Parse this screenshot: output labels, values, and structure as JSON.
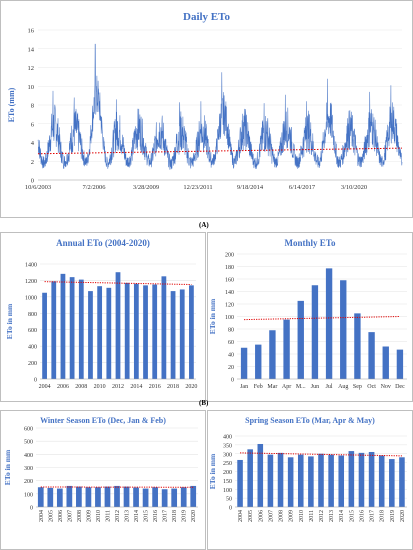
{
  "labels": {
    "a": "(A)",
    "b": "(B)"
  },
  "chart_data": [
    {
      "id": "daily",
      "type": "line",
      "title": "Daily ETo",
      "ylabel": "ETo  (mm)",
      "xlabel": "",
      "ylim": [
        0,
        16
      ],
      "yticks": [
        0,
        2,
        4,
        6,
        8,
        10,
        12,
        14,
        16
      ],
      "xticks": [
        "10/6/2003",
        "7/2/2006",
        "3/28/2009",
        "12/23/2011",
        "9/18/2014",
        "6/14/2017",
        "3/10/2020"
      ],
      "x_start": 2003.76,
      "x_end": 2021.0,
      "series": [
        {
          "years": [
            2004,
            2005,
            2006,
            2007,
            2008,
            2009,
            2010,
            2011,
            2012,
            2013,
            2014,
            2015,
            2016,
            2017,
            2018,
            2019,
            2020
          ],
          "summer_peaks": [
            9.5,
            8.8,
            14.5,
            8.6,
            8.9,
            8.5,
            8.3,
            8.4,
            11.5,
            8.8,
            8.2,
            9.1,
            8.4,
            10.8,
            8.6,
            9.4,
            10.1
          ],
          "winter_mins": [
            0.9,
            1.1,
            1.0,
            0.9,
            1.1,
            1.0,
            0.8,
            1.0,
            1.2,
            1.0,
            0.9,
            1.1,
            1.0,
            0.9,
            1.0,
            1.1,
            1.0
          ]
        }
      ],
      "trend": [
        2.8,
        3.4
      ],
      "colors": {
        "line": "#4472c4",
        "trend": "#e00000",
        "title": "#4472c4"
      }
    },
    {
      "id": "annual",
      "type": "bar",
      "title": "Annual ETo (2004-2020)",
      "ylabel": "ETo in mm",
      "xlabel": "",
      "ylim": [
        0,
        1400
      ],
      "yticks": [
        0,
        200,
        400,
        600,
        800,
        1000,
        1200,
        1400
      ],
      "categories": [
        "2004",
        "2005",
        "2006",
        "2007",
        "2008",
        "2009",
        "2010",
        "2011",
        "2012",
        "2013",
        "2014",
        "2015",
        "2016",
        "2017",
        "2018",
        "2019",
        "2020"
      ],
      "xtick_labels": [
        "2004",
        "",
        "2006",
        "",
        "2008",
        "",
        "2010",
        "",
        "2012",
        "",
        "2014",
        "",
        "2016",
        "",
        "2018",
        "",
        "2020"
      ],
      "values": [
        1050,
        1190,
        1280,
        1240,
        1210,
        1070,
        1130,
        1110,
        1300,
        1170,
        1160,
        1140,
        1150,
        1250,
        1070,
        1090,
        1140
      ],
      "trend": [
        1185,
        1150
      ],
      "colors": {
        "bar": "#4472c4",
        "trend": "#e00000",
        "title": "#4472c4"
      }
    },
    {
      "id": "monthly",
      "type": "bar",
      "title": "Monthly ETo",
      "ylabel": "ETo in mm",
      "xlabel": "",
      "ylim": [
        0,
        200
      ],
      "yticks": [
        0,
        20,
        40,
        60,
        80,
        100,
        120,
        140,
        160,
        180,
        200
      ],
      "categories": [
        "Jan",
        "Feb",
        "Mar",
        "Apr",
        "M...",
        "Jun",
        "Jul",
        "Aug",
        "Sep",
        "Oct",
        "Nov",
        "Dec"
      ],
      "xtick_labels": [
        "Jan",
        "Feb",
        "Mar",
        "Apr",
        "M...",
        "Jun",
        "Jul",
        "Aug",
        "Sep",
        "Oct",
        "Nov",
        "Dec"
      ],
      "values": [
        50,
        55,
        78,
        95,
        125,
        150,
        177,
        158,
        105,
        75,
        52,
        47
      ],
      "trend": [
        95,
        100
      ],
      "colors": {
        "bar": "#4472c4",
        "trend": "#e00000",
        "title": "#4472c4"
      }
    },
    {
      "id": "winter",
      "type": "bar",
      "title": "Winter Season ETo (Dec, Jan & Feb)",
      "ylabel": "ETo in mm",
      "xlabel": "",
      "ylim": [
        0,
        600
      ],
      "yticks": [
        0,
        100,
        200,
        300,
        400,
        500,
        600
      ],
      "categories": [
        "2004",
        "2005",
        "2006",
        "2007",
        "2008",
        "2009",
        "2010",
        "2011",
        "2012",
        "2013",
        "2014",
        "2015",
        "2016",
        "2017",
        "2018",
        "2019",
        "2020"
      ],
      "xtick_labels": [
        "2004",
        "2005",
        "2006",
        "2007",
        "2008",
        "2009",
        "2010",
        "2011",
        "2012",
        "2013",
        "2014",
        "2015",
        "2016",
        "2017",
        "2018",
        "2019",
        "2020"
      ],
      "values": [
        150,
        145,
        140,
        160,
        155,
        150,
        150,
        155,
        160,
        155,
        148,
        140,
        150,
        135,
        140,
        150,
        160
      ],
      "trend": [
        152,
        150
      ],
      "colors": {
        "bar": "#4472c4",
        "trend": "#e00000",
        "title": "#4472c4"
      }
    },
    {
      "id": "spring",
      "type": "bar",
      "title": "Spring Season ETo (Mar, Apr & May)",
      "ylabel": "ETo in mm",
      "xlabel": "",
      "ylim": [
        0,
        400
      ],
      "yticks": [
        0,
        50,
        100,
        150,
        200,
        250,
        300,
        350,
        400
      ],
      "categories": [
        "2004",
        "2005",
        "2006",
        "2007",
        "2008",
        "2009",
        "2010",
        "2011",
        "2012",
        "2013",
        "2014",
        "2015",
        "2016",
        "2017",
        "2018",
        "2019",
        "2020"
      ],
      "xtick_labels": [
        "2004",
        "2005",
        "2006",
        "2007",
        "2008",
        "2009",
        "2010",
        "2011",
        "2012",
        "2013",
        "2014",
        "2015",
        "2016",
        "2017",
        "2018",
        "2019",
        "2020"
      ],
      "values": [
        265,
        325,
        355,
        295,
        305,
        280,
        295,
        285,
        300,
        295,
        290,
        315,
        305,
        310,
        290,
        270,
        280
      ],
      "trend": [
        305,
        288
      ],
      "colors": {
        "bar": "#4472c4",
        "trend": "#e00000",
        "title": "#4472c4"
      }
    }
  ]
}
